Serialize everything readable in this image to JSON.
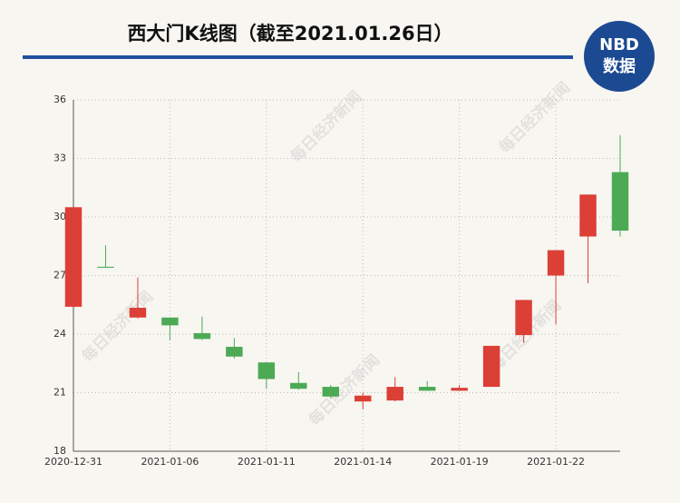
{
  "chart_data": {
    "type": "candlestick",
    "title": "西大门K线图（截至2021.01.26日）",
    "categories": [
      "2020-12-31",
      null,
      null,
      "2021-01-06",
      null,
      null,
      "2021-01-11",
      null,
      null,
      "2021-01-14",
      null,
      null,
      "2021-01-19",
      null,
      null,
      "2021-01-22",
      null,
      null
    ],
    "open": [
      25.4,
      27.45,
      24.85,
      24.85,
      24.05,
      23.35,
      22.55,
      21.5,
      21.3,
      20.55,
      20.6,
      21.3,
      21.1,
      21.3,
      23.95,
      27.0,
      29.0,
      32.3
    ],
    "high": [
      30.5,
      28.55,
      26.9,
      24.85,
      24.9,
      23.8,
      22.55,
      22.05,
      21.4,
      21.0,
      21.8,
      21.6,
      21.4,
      23.4,
      25.75,
      28.3,
      31.15,
      34.2
    ],
    "low": [
      25.4,
      27.4,
      24.8,
      23.7,
      23.7,
      22.75,
      21.2,
      21.15,
      20.7,
      20.15,
      20.55,
      21.1,
      21.1,
      21.3,
      23.55,
      24.5,
      26.6,
      29.0
    ],
    "close": [
      30.5,
      27.4,
      25.35,
      24.45,
      23.75,
      22.85,
      21.7,
      21.2,
      20.8,
      20.85,
      21.3,
      21.1,
      21.25,
      23.4,
      25.75,
      28.3,
      31.15,
      29.3
    ],
    "up_color": "#dc3f36",
    "down_color": "#4caa55",
    "ylim": [
      18,
      36
    ],
    "yticks": [
      18,
      21,
      24,
      27,
      30,
      33,
      36
    ],
    "grid": true
  },
  "logo": {
    "name": "NBD",
    "subtitle": "数据"
  },
  "watermark": "每日经济新闻"
}
